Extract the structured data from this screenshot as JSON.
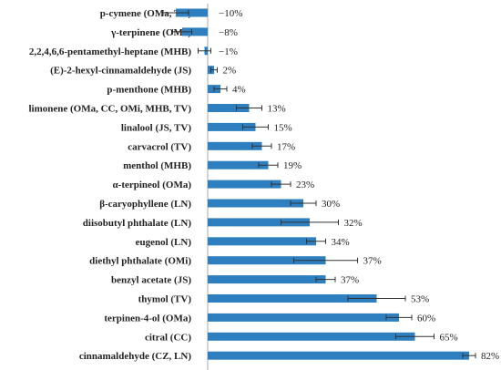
{
  "chart_data": {
    "type": "bar",
    "orientation": "horizontal",
    "bar_color": "#2e7fbf",
    "error_color": "#333333",
    "axis_color": "#aaaaaa",
    "xlim": [
      -20,
      85
    ],
    "grid": false,
    "categories": [
      "p-cymene (OMa, TV)",
      "γ-terpinene (OMa)",
      "2,2,4,6,6-pentamethyl-heptane (MHB)",
      "(E)-2-hexyl-cinnamaldehyde (JS)",
      "p-menthone (MHB)",
      "limonene (OMa, CC, OMi, MHB, TV)",
      "linalool (JS, TV)",
      "carvacrol (TV)",
      "menthol (MHB)",
      "α-terpineol (OMa)",
      "β-caryophyllene (LN)",
      "diisobutyl phthalate (LN)",
      "eugenol (LN)",
      "diethyl phthalate (OMi)",
      "benzyl acetate (JS)",
      "thymol (TV)",
      "terpinen-4-ol (OMa)",
      "citral (CC)",
      "cinnamaldehyde (CZ, LN)"
    ],
    "values": [
      -10,
      -8,
      -1,
      2,
      4,
      13,
      15,
      17,
      19,
      23,
      30,
      32,
      34,
      37,
      37,
      53,
      60,
      65,
      82
    ],
    "errors": [
      4,
      3,
      2,
      1,
      2,
      4,
      4,
      3,
      3,
      3,
      4,
      9,
      3,
      10,
      3,
      9,
      4,
      6,
      2
    ],
    "value_labels": [
      "−10%",
      "−8%",
      "−1%",
      "2%",
      "4%",
      "13%",
      "15%",
      "17%",
      "19%",
      "23%",
      "30%",
      "32%",
      "34%",
      "37%",
      "37%",
      "53%",
      "60%",
      "65%",
      "82%"
    ]
  }
}
